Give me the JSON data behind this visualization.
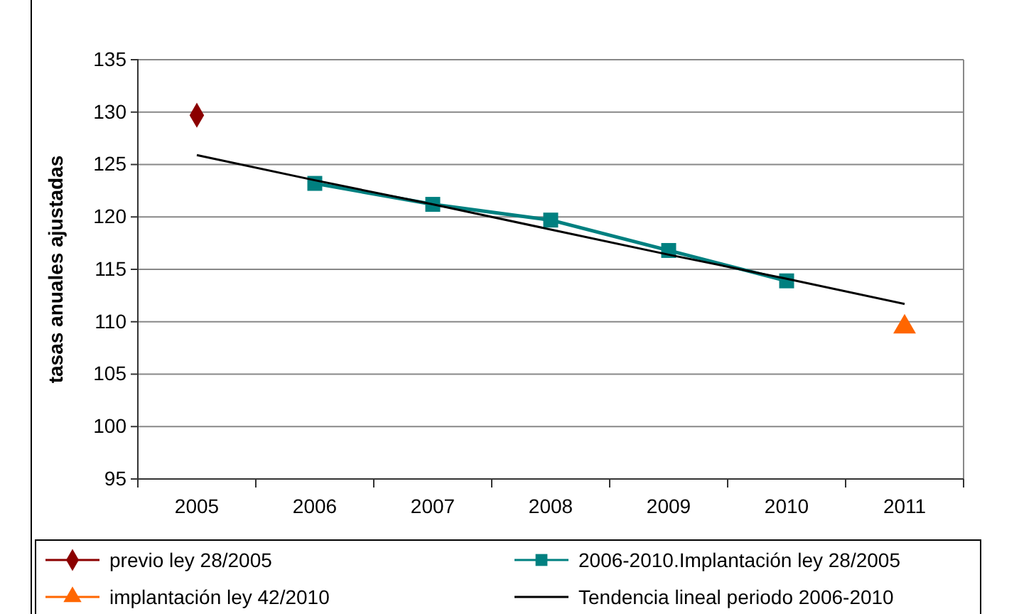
{
  "chart_data": {
    "type": "line",
    "ylabel": "tasas anuales ajustadas",
    "categories": [
      "2005",
      "2006",
      "2007",
      "2008",
      "2009",
      "2010",
      "2011"
    ],
    "series": [
      {
        "name": "previo ley 28/2005",
        "color": "#8b0000",
        "marker": "diamond",
        "values": [
          129.7,
          null,
          null,
          null,
          null,
          null,
          null
        ]
      },
      {
        "name": "2006-2010.Implantación ley 28/2005",
        "color": "#008080",
        "marker": "square",
        "values": [
          null,
          123.2,
          121.2,
          119.7,
          116.8,
          113.9,
          null
        ]
      },
      {
        "name": "implantación ley 42/2010",
        "color": "#ff6600",
        "marker": "triangle",
        "values": [
          null,
          null,
          null,
          null,
          null,
          null,
          109.5
        ]
      },
      {
        "name": "Tendencia lineal periodo 2006-2010",
        "color": "#000000",
        "marker": "none",
        "values": [
          125.9,
          123.5,
          121.2,
          118.8,
          116.4,
          114.1,
          111.7
        ]
      }
    ],
    "ylim": [
      95,
      135
    ],
    "yticks": [
      95,
      100,
      105,
      110,
      115,
      120,
      125,
      130,
      135
    ],
    "grid": "y",
    "legend": "bottom"
  }
}
